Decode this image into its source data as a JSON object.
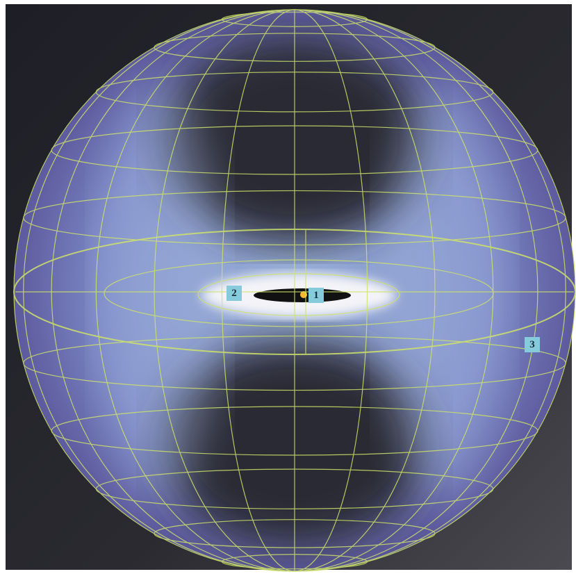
{
  "markers": [
    "1",
    "2",
    "3"
  ]
}
